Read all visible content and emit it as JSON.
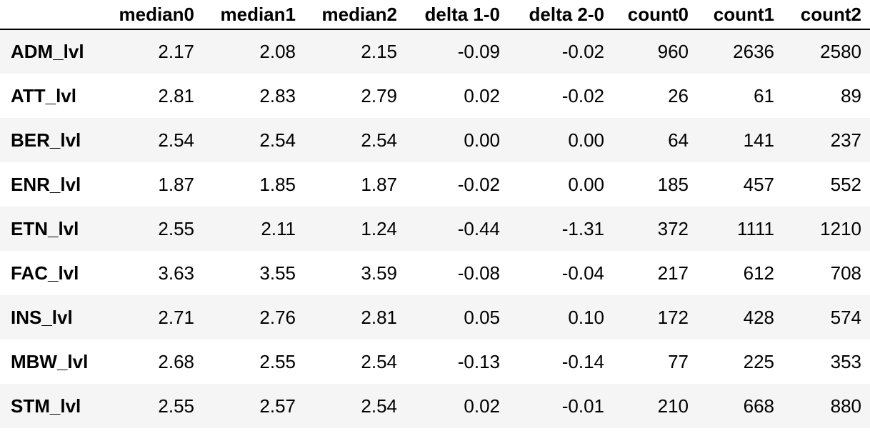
{
  "table": {
    "index_header": "",
    "columns": [
      "median0",
      "median1",
      "median2",
      "delta 1-0",
      "delta 2-0",
      "count0",
      "count1",
      "count2"
    ],
    "rows": [
      {
        "label": "ADM_lvl",
        "cells": [
          "2.17",
          "2.08",
          "2.15",
          "-0.09",
          "-0.02",
          "960",
          "2636",
          "2580"
        ]
      },
      {
        "label": "ATT_lvl",
        "cells": [
          "2.81",
          "2.83",
          "2.79",
          "0.02",
          "-0.02",
          "26",
          "61",
          "89"
        ]
      },
      {
        "label": "BER_lvl",
        "cells": [
          "2.54",
          "2.54",
          "2.54",
          "0.00",
          "0.00",
          "64",
          "141",
          "237"
        ]
      },
      {
        "label": "ENR_lvl",
        "cells": [
          "1.87",
          "1.85",
          "1.87",
          "-0.02",
          "0.00",
          "185",
          "457",
          "552"
        ]
      },
      {
        "label": "ETN_lvl",
        "cells": [
          "2.55",
          "2.11",
          "1.24",
          "-0.44",
          "-1.31",
          "372",
          "1111",
          "1210"
        ]
      },
      {
        "label": "FAC_lvl",
        "cells": [
          "3.63",
          "3.55",
          "3.59",
          "-0.08",
          "-0.04",
          "217",
          "612",
          "708"
        ]
      },
      {
        "label": "INS_lvl",
        "cells": [
          "2.71",
          "2.76",
          "2.81",
          "0.05",
          "0.10",
          "172",
          "428",
          "574"
        ]
      },
      {
        "label": "MBW_lvl",
        "cells": [
          "2.68",
          "2.55",
          "2.54",
          "-0.13",
          "-0.14",
          "77",
          "225",
          "353"
        ]
      },
      {
        "label": "STM_lvl",
        "cells": [
          "2.55",
          "2.57",
          "2.54",
          "0.02",
          "-0.01",
          "210",
          "668",
          "880"
        ]
      }
    ]
  },
  "colors": {
    "stripe": "#f5f5f5",
    "background": "#ffffff",
    "header_rule": "#000000"
  }
}
